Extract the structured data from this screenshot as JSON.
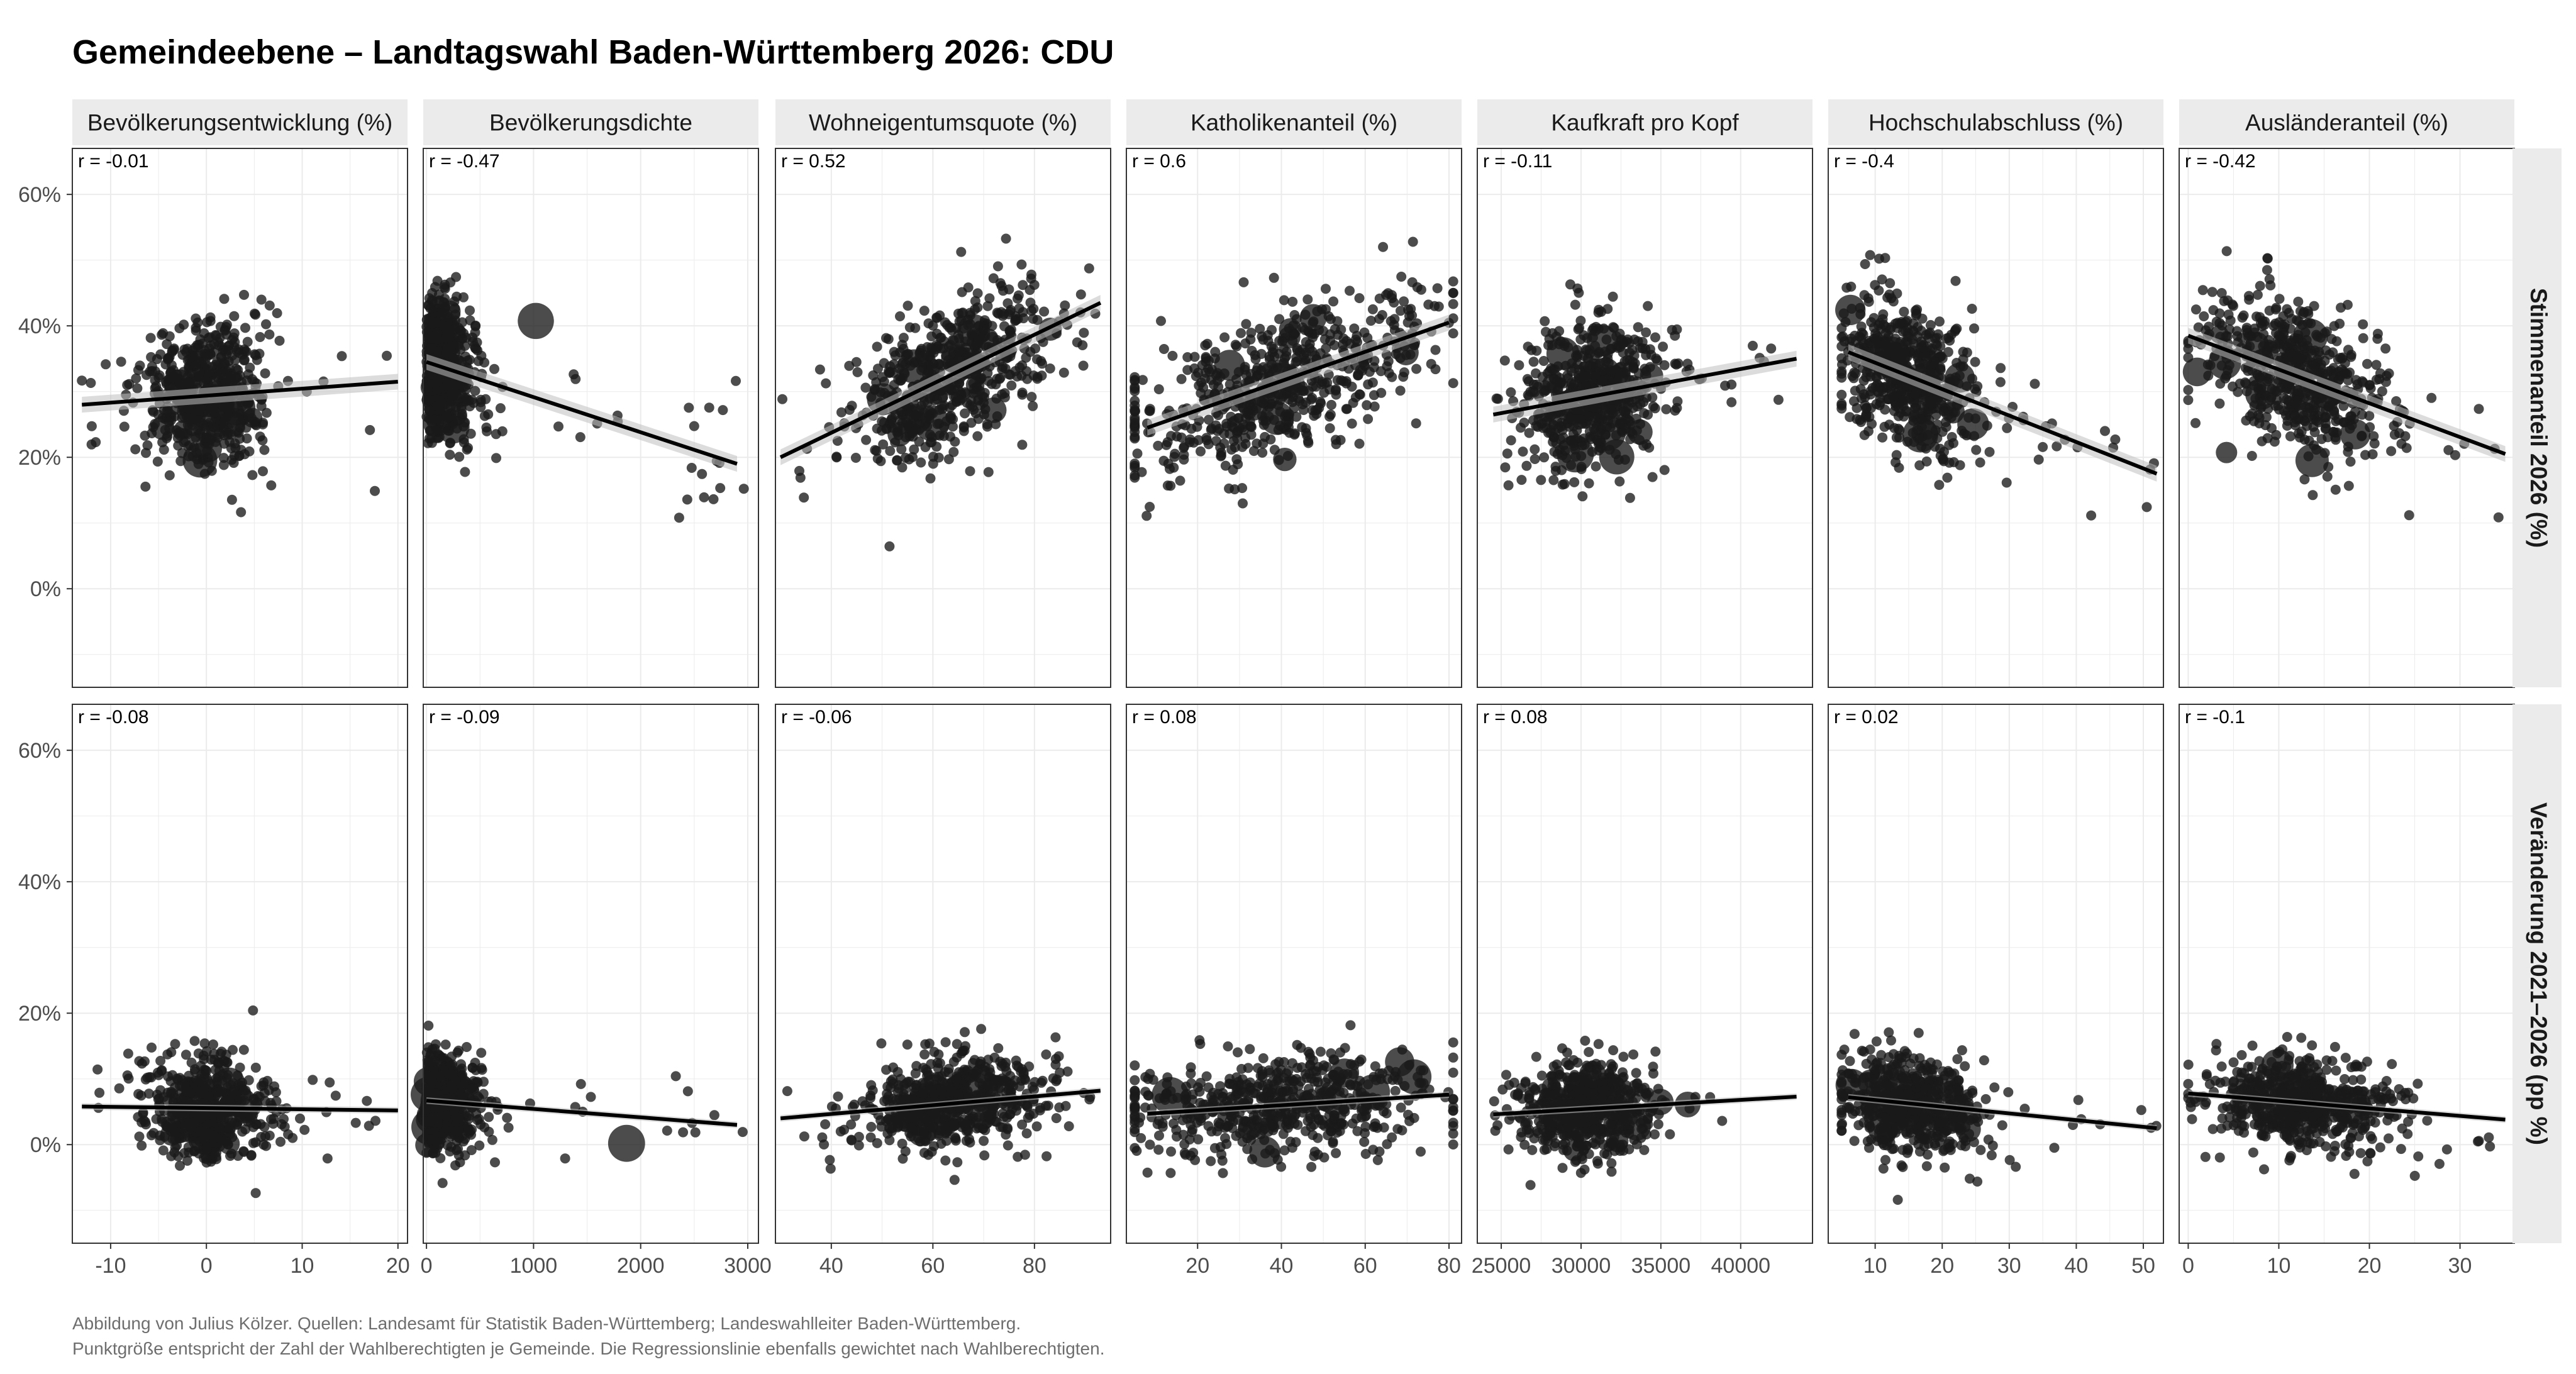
{
  "title": "Gemeindeebene – Landtagswahl Baden-Württemberg 2026: CDU",
  "caption": {
    "line1": "Abbildung von Julius Kölzer. Quellen: Landesamt für Statistik Baden-Württemberg; Landeswahlleiter Baden-Württemberg.",
    "line2": "Punktgröße entspricht der Zahl der Wahlberechtigten je Gemeinde. Die Regressionslinie ebenfalls gewichtet nach Wahlberechtigten."
  },
  "colors": {
    "point": "#1a1a1a",
    "line": "#000000",
    "ribbon": "#bfbfbf",
    "strip": "#ebebeb",
    "grid": "#ebebeb",
    "border": "#333333"
  },
  "chart_data": {
    "type": "scatter",
    "layout": "facet_grid",
    "y_ticks": [
      0,
      20,
      40,
      60
    ],
    "y_tick_labels": [
      "0%",
      "20%",
      "40%",
      "60%"
    ],
    "ylim": [
      -15,
      67
    ],
    "rows": [
      {
        "label": "Stimmenanteil 2026 (%)",
        "key": "share"
      },
      {
        "label": "Veränderung 2021–2026 (pp %)",
        "key": "change"
      }
    ],
    "columns": [
      {
        "label": "Bevölkerungsentwicklung (%)",
        "xlim": [
          -14,
          21
        ],
        "x_ticks": [
          -10,
          0,
          10,
          20
        ],
        "x_tick_labels": [
          "-10",
          "0",
          "10",
          "20"
        ],
        "cloud": {
          "xm": 0,
          "xs": 3,
          "xmin": -13,
          "xmax": 20
        },
        "r": [
          "r = -0.01",
          "r = -0.08"
        ],
        "fit": [
          {
            "x0": -13,
            "y0": 28,
            "x1": 20,
            "y1": 31.5
          },
          {
            "x0": -13,
            "y0": 5.8,
            "x1": 20,
            "y1": 5.2
          }
        ]
      },
      {
        "label": "Bevölkerungsdichte",
        "xlim": [
          -30,
          3100
        ],
        "x_ticks": [
          0,
          1000,
          2000,
          3000
        ],
        "x_tick_labels": [
          "0",
          "1000",
          "2000",
          "3000"
        ],
        "cloud": {
          "xm": 250,
          "xs": 200,
          "xmin": 0,
          "xmax": 3000,
          "skew": true
        },
        "r": [
          "r = -0.47",
          "r = -0.09"
        ],
        "fit": [
          {
            "x0": 0,
            "y0": 34.5,
            "x1": 2900,
            "y1": 19
          },
          {
            "x0": 0,
            "y0": 6.7,
            "x1": 2900,
            "y1": 3
          }
        ]
      },
      {
        "label": "Wohneigentumsquote (%)",
        "xlim": [
          29,
          95
        ],
        "x_ticks": [
          40,
          60,
          80
        ],
        "x_tick_labels": [
          "40",
          "60",
          "80"
        ],
        "cloud": {
          "xm": 64,
          "xs": 9,
          "xmin": 30,
          "xmax": 93
        },
        "r": [
          "r = 0.52",
          "r = -0.06"
        ],
        "fit": [
          {
            "x0": 30,
            "y0": 20,
            "x1": 93,
            "y1": 43.5
          },
          {
            "x0": 30,
            "y0": 4,
            "x1": 93,
            "y1": 8.2
          }
        ]
      },
      {
        "label": "Katholikenanteil (%)",
        "xlim": [
          3,
          83
        ],
        "x_ticks": [
          20,
          40,
          60,
          80
        ],
        "x_tick_labels": [
          "20",
          "40",
          "60",
          "80"
        ],
        "cloud": {
          "xm": 40,
          "xs": 19,
          "xmin": 5,
          "xmax": 81
        },
        "r": [
          "r = 0.6",
          "r = 0.08"
        ],
        "fit": [
          {
            "x0": 8,
            "y0": 24.5,
            "x1": 80,
            "y1": 40.5
          },
          {
            "x0": 8,
            "y0": 4.7,
            "x1": 80,
            "y1": 7.6
          }
        ]
      },
      {
        "label": "Kaufkraft pro Kopf",
        "xlim": [
          23500,
          44500
        ],
        "x_ticks": [
          25000,
          30000,
          35000,
          40000
        ],
        "x_tick_labels": [
          "25000",
          "30000",
          "35000",
          "40000"
        ],
        "cloud": {
          "xm": 30500,
          "xs": 2200,
          "xmin": 24500,
          "xmax": 43500
        },
        "r": [
          "r = -0.11",
          "r = 0.08"
        ],
        "fit": [
          {
            "x0": 24500,
            "y0": 26.5,
            "x1": 43500,
            "y1": 35
          },
          {
            "x0": 24500,
            "y0": 4.6,
            "x1": 43500,
            "y1": 7.3
          }
        ]
      },
      {
        "label": "Hochschulabschluss (%)",
        "xlim": [
          3,
          53
        ],
        "x_ticks": [
          10,
          20,
          30,
          40,
          50
        ],
        "x_tick_labels": [
          "10",
          "20",
          "30",
          "40",
          "50"
        ],
        "cloud": {
          "xm": 15,
          "xs": 5,
          "xmin": 5,
          "xmax": 52
        },
        "r": [
          "r = -0.4",
          "r = 0.02"
        ],
        "fit": [
          {
            "x0": 6,
            "y0": 36,
            "x1": 52,
            "y1": 17.5
          },
          {
            "x0": 6,
            "y0": 7.2,
            "x1": 52,
            "y1": 2.5
          }
        ]
      },
      {
        "label": "Ausländeranteil (%)",
        "xlim": [
          -1,
          36
        ],
        "x_ticks": [
          0,
          10,
          20,
          30
        ],
        "x_tick_labels": [
          "0",
          "10",
          "20",
          "30"
        ],
        "cloud": {
          "xm": 12,
          "xs": 5,
          "xmin": 0,
          "xmax": 35
        },
        "r": [
          "r = -0.42",
          "r = -0.1"
        ],
        "fit": [
          {
            "x0": 0,
            "y0": 38.5,
            "x1": 35,
            "y1": 20.5
          },
          {
            "x0": 0,
            "y0": 7.8,
            "x1": 35,
            "y1": 3.8
          }
        ]
      }
    ]
  }
}
